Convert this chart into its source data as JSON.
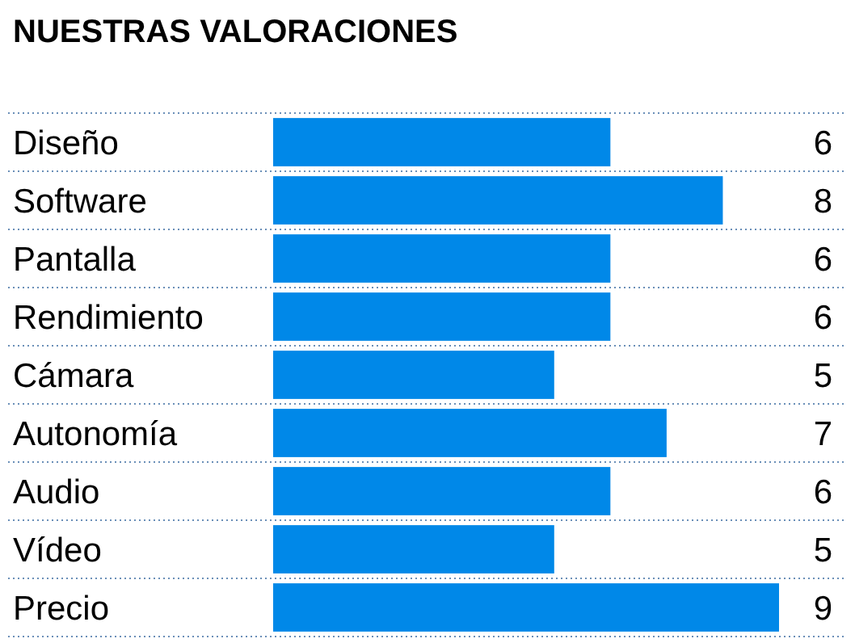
{
  "chart_data": {
    "type": "bar",
    "title": "NUESTRAS VALORACIONES",
    "orientation": "horizontal",
    "categories": [
      "Diseño",
      "Software",
      "Pantalla",
      "Rendimiento",
      "Cámara",
      "Autonomía",
      "Audio",
      "Vídeo",
      "Precio"
    ],
    "values": [
      6,
      8,
      6,
      6,
      5,
      7,
      6,
      5,
      9
    ],
    "color": "#0088e8",
    "data_labels": true,
    "tick_labels": "y",
    "grid": "y"
  }
}
